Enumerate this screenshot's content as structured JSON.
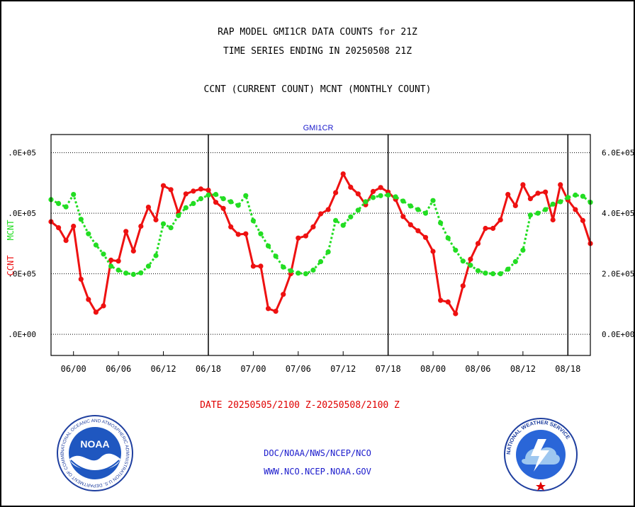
{
  "header": {
    "title_line1": "RAP MODEL GMI1CR DATA COUNTS for 21Z",
    "title_line2": "TIME SERIES ENDING IN 20250508 21Z",
    "subtitle": "CCNT (CURRENT COUNT) MCNT (MONTHLY COUNT)"
  },
  "chart_data": {
    "type": "line",
    "title": "GMI1CR",
    "x_tick_labels": [
      "06/00",
      "06/06",
      "06/12",
      "06/18",
      "07/00",
      "07/06",
      "07/12",
      "07/18",
      "08/00",
      "08/06",
      "08/12",
      "08/18"
    ],
    "xlim": [
      -3,
      69
    ],
    "left_ylabel_parts": [
      "CCNT",
      "MCNT"
    ],
    "left_tick_labels": [
      ".0E+05",
      ".0E+05",
      ".0E+05",
      ".0E+00"
    ],
    "right_tick_labels": [
      "6.0E+05",
      "4.0E+05",
      "2.0E+05",
      "0.0E+00"
    ],
    "ylim": [
      -70000,
      660000
    ],
    "y_ticks": [
      0,
      200000,
      400000,
      600000
    ],
    "grid": true,
    "series": [
      {
        "name": "CCNT",
        "color": "#ee1111",
        "line_style": "solid",
        "x": [
          -3,
          -2,
          -1,
          0,
          1,
          2,
          3,
          4,
          5,
          6,
          7,
          8,
          9,
          10,
          11,
          12,
          13,
          14,
          15,
          16,
          17,
          18,
          19,
          20,
          21,
          22,
          23,
          24,
          25,
          26,
          27,
          28,
          29,
          30,
          31,
          32,
          33,
          34,
          35,
          36,
          37,
          38,
          39,
          40,
          41,
          42,
          43,
          44,
          45,
          46,
          47,
          48,
          49,
          50,
          51,
          52,
          53,
          54,
          55,
          56,
          57,
          58,
          59,
          60,
          61,
          62,
          63,
          64,
          65,
          66,
          67,
          68,
          69
        ],
        "values": [
          372000,
          352000,
          310000,
          357000,
          182000,
          115000,
          73000,
          94000,
          245000,
          242000,
          340000,
          275000,
          357000,
          420000,
          378000,
          491000,
          478000,
          400000,
          464000,
          473000,
          480000,
          476000,
          436000,
          416000,
          355000,
          330000,
          332000,
          225000,
          225000,
          85000,
          76000,
          132000,
          200000,
          318000,
          325000,
          355000,
          398000,
          412000,
          468000,
          530000,
          486000,
          464000,
          428000,
          472000,
          485000,
          470000,
          446000,
          389000,
          362000,
          342000,
          320000,
          274000,
          112000,
          107000,
          68000,
          160000,
          248000,
          300000,
          350000,
          350000,
          378000,
          462000,
          425000,
          494000,
          448000,
          466000,
          470000,
          378000,
          494000,
          444000,
          412000,
          376000,
          300000
        ]
      },
      {
        "name": "MCNT",
        "color": "#22dd22",
        "line_style": "dotted",
        "x": [
          -3,
          -2,
          -1,
          0,
          1,
          2,
          3,
          4,
          5,
          6,
          7,
          8,
          9,
          10,
          11,
          12,
          13,
          14,
          15,
          16,
          17,
          18,
          19,
          20,
          21,
          22,
          23,
          24,
          25,
          26,
          27,
          28,
          29,
          30,
          31,
          32,
          33,
          34,
          35,
          36,
          37,
          38,
          39,
          40,
          41,
          42,
          43,
          44,
          45,
          46,
          47,
          48,
          49,
          50,
          51,
          52,
          53,
          54,
          55,
          56,
          57,
          58,
          59,
          60,
          61,
          62,
          63,
          64,
          65,
          66,
          67,
          68,
          69
        ],
        "values": [
          445000,
          432000,
          421000,
          462000,
          380000,
          332000,
          295000,
          265000,
          225000,
          212000,
          202000,
          198000,
          203000,
          225000,
          260000,
          365000,
          352000,
          392000,
          418000,
          432000,
          448000,
          460000,
          462000,
          448000,
          438000,
          426000,
          458000,
          375000,
          332000,
          292000,
          258000,
          222000,
          210000,
          202000,
          200000,
          212000,
          240000,
          272000,
          376000,
          360000,
          388000,
          410000,
          438000,
          452000,
          458000,
          460000,
          454000,
          440000,
          424000,
          412000,
          400000,
          442000,
          368000,
          318000,
          278000,
          242000,
          228000,
          210000,
          202000,
          200000,
          200000,
          215000,
          240000,
          278000,
          394000,
          400000,
          412000,
          430000,
          438000,
          452000,
          460000,
          456000,
          436000
        ]
      }
    ]
  },
  "date_range_text": "DATE 20250505/2100 Z-20250508/2100 Z",
  "footer": {
    "link1": "DOC/NOAA/NWS/NCEP/NCO",
    "link2": "WWW.NCO.NCEP.NOAA.GOV",
    "noaa_logo_text": "NOAA",
    "noaa_ring_text": "NATIONAL OCEANIC AND ATMOSPHERIC ADMINISTRATION  U.S. DEPARTMENT OF COMMERCE",
    "nws_ring_text": "NATIONAL WEATHER SERVICE"
  }
}
